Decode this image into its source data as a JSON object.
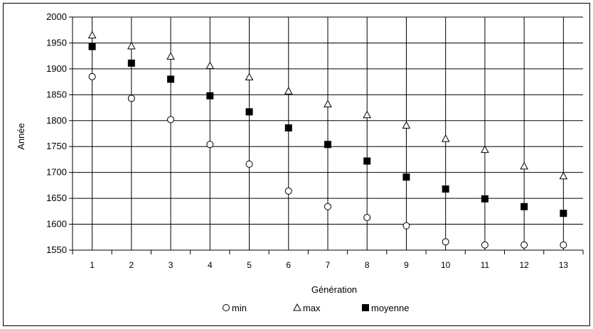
{
  "chart_data": {
    "type": "scatter",
    "xlabel": "Génération",
    "ylabel": "Année",
    "x": [
      1,
      2,
      3,
      4,
      5,
      6,
      7,
      8,
      9,
      10,
      11,
      12,
      13
    ],
    "ylim": [
      1550,
      2000
    ],
    "yticks": [
      1550,
      1600,
      1650,
      1700,
      1750,
      1800,
      1850,
      1900,
      1950,
      2000
    ],
    "grid": true,
    "legend_position": "bottom",
    "series": [
      {
        "name": "min",
        "marker": "circle-open",
        "color": "#000000",
        "values": [
          1885,
          1843,
          1802,
          1754,
          1716,
          1664,
          1634,
          1613,
          1597,
          1566,
          1560,
          1560,
          1560
        ]
      },
      {
        "name": "max",
        "marker": "triangle-open",
        "color": "#000000",
        "values": [
          1965,
          1944,
          1924,
          1906,
          1884,
          1857,
          1832,
          1811,
          1791,
          1765,
          1744,
          1712,
          1693
        ]
      },
      {
        "name": "moyenne",
        "marker": "square-filled",
        "color": "#000000",
        "values": [
          1943,
          1911,
          1880,
          1848,
          1817,
          1786,
          1754,
          1722,
          1691,
          1668,
          1649,
          1634,
          1621
        ]
      }
    ]
  }
}
